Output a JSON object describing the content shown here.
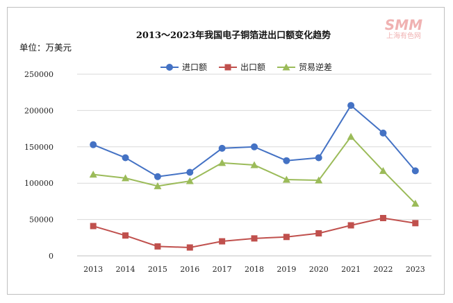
{
  "watermark": {
    "logo": "SMM",
    "subtitle": "上海有色网"
  },
  "chart_data": {
    "type": "line",
    "title": "2013～2023年我国电子铜箔进出口额变化趋势",
    "unit_label": "单位：万美元",
    "categories": [
      "2013",
      "2014",
      "2015",
      "2016",
      "2017",
      "2018",
      "2019",
      "2020",
      "2021",
      "2022",
      "2023"
    ],
    "ylim": [
      0,
      250000
    ],
    "yticks": [
      "0",
      "50000",
      "100000",
      "150000",
      "200000",
      "250000"
    ],
    "grid": true,
    "legend_position": "top-center",
    "series": [
      {
        "name": "进口额",
        "marker": "circle",
        "color": "#4472c4",
        "values": [
          153000,
          135000,
          109000,
          115000,
          148000,
          150000,
          131000,
          135000,
          207000,
          169000,
          117000
        ]
      },
      {
        "name": "出口额",
        "marker": "square",
        "color": "#c0504d",
        "values": [
          41000,
          28000,
          13000,
          11500,
          20000,
          24000,
          26000,
          31000,
          42000,
          52000,
          45000
        ]
      },
      {
        "name": "贸易逆差",
        "marker": "triangle",
        "color": "#9bbb59",
        "values": [
          112000,
          107000,
          96000,
          103000,
          128000,
          125000,
          105000,
          104000,
          164000,
          117000,
          72000
        ]
      }
    ]
  }
}
